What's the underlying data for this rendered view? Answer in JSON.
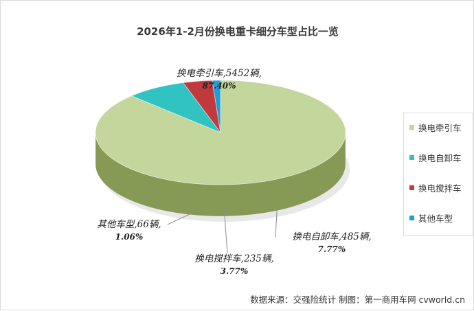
{
  "chart_data": {
    "type": "pie",
    "title": "2026年1-2月份换电重卡细分车型占比一览",
    "categories": [
      "换电牵引车",
      "换电自卸车",
      "换电搅拌车",
      "其他车型"
    ],
    "values": [
      5452,
      485,
      235,
      66
    ],
    "percents": [
      "87.40%",
      "7.77%",
      "3.77%",
      "1.06%"
    ],
    "unit": "辆",
    "slice_labels": [
      "换电牵引车,5452辆,",
      "换电自卸车,485辆,",
      "换电搅拌车,235辆,",
      "其他车型,66辆,"
    ],
    "colors": [
      "#c3d69b",
      "#31c2c2",
      "#c0393d",
      "#1e9ed8"
    ],
    "side_colors": [
      "#879a55",
      "#0f4f4f",
      "#4a1c1e",
      "#0a5a86"
    ],
    "legend_placement": "right",
    "style": "3d-pie"
  },
  "footer": {
    "source": "数据来源：交强险统计  制图：第一商用车网 cvworld.cn"
  }
}
